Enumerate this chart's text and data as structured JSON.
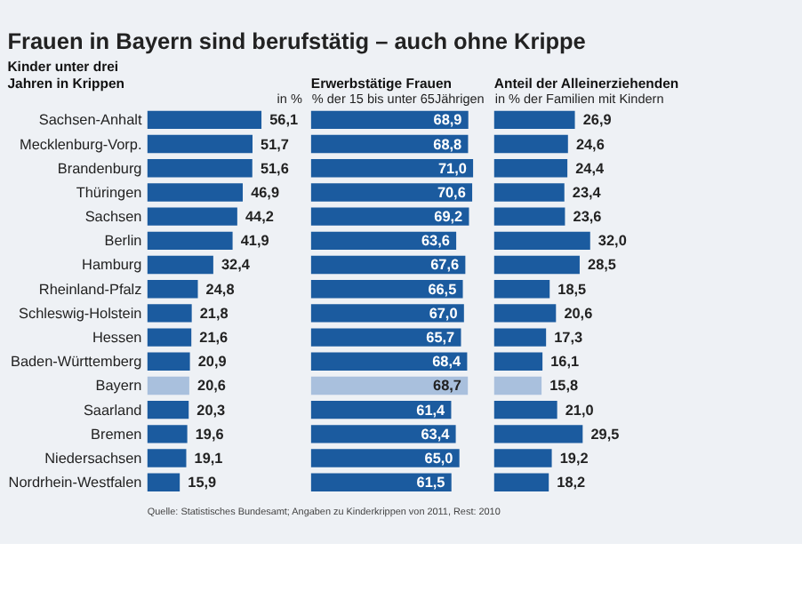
{
  "chart_data": [
    {
      "type": "bar",
      "orientation": "horizontal",
      "title": "Frauen in Bayern sind berufstätig – auch ohne Krippe",
      "subtitle": "Kinder unter drei\nJahren in Krippen",
      "xlabel": "in %",
      "categories": [
        "Sachsen-Anhalt",
        "Mecklenburg-Vorp.",
        "Brandenburg",
        "Thüringen",
        "Sachsen",
        "Berlin",
        "Hamburg",
        "Rheinland-Pfalz",
        "Schleswig-Holstein",
        "Hessen",
        "Baden-Württemberg",
        "Bayern",
        "Saarland",
        "Bremen",
        "Niedersachsen",
        "Nordrhein-Westfalen"
      ],
      "values": [
        56.1,
        51.7,
        51.6,
        46.9,
        44.2,
        41.9,
        32.4,
        24.8,
        21.8,
        21.6,
        20.9,
        20.6,
        20.3,
        19.6,
        19.1,
        15.9
      ],
      "value_labels": [
        "56,1",
        "51,7",
        "51,6",
        "46,9",
        "44,2",
        "41,9",
        "32,4",
        "24,8",
        "21,8",
        "21,6",
        "20,9",
        "20,6",
        "20,3",
        "19,6",
        "19,1",
        "15,9"
      ],
      "colors": [
        "#1b5b9f",
        "#1b5b9f",
        "#1b5b9f",
        "#1b5b9f",
        "#1b5b9f",
        "#1b5b9f",
        "#1b5b9f",
        "#1b5b9f",
        "#1b5b9f",
        "#1b5b9f",
        "#1b5b9f",
        "#a9c0dd",
        "#1b5b9f",
        "#1b5b9f",
        "#1b5b9f",
        "#1b5b9f"
      ],
      "tick_labels": "y",
      "annotations": [
        "Quelle: Statistisches Bundesamt; Angaben zu Kinderkrippen von 2011, Rest: 2010"
      ]
    },
    {
      "type": "bar",
      "orientation": "horizontal",
      "subtitle": "Erwerbstätige Frauen",
      "xlabel": "% der 15 bis unter 65Jährigen",
      "categories": [
        null,
        null,
        null,
        null,
        null,
        null,
        null,
        null,
        null,
        null,
        null,
        null,
        null,
        null,
        null,
        null
      ],
      "values": [
        68.9,
        68.8,
        71.0,
        70.6,
        69.2,
        63.6,
        67.6,
        66.5,
        67.0,
        65.7,
        68.4,
        68.7,
        61.4,
        63.4,
        65.0,
        61.5
      ],
      "value_labels": [
        "68,9",
        "68,8",
        "71,0",
        "70,6",
        "69,2",
        "63,6",
        "67,6",
        "66,5",
        "67,0",
        "65,7",
        "68,4",
        "68,7",
        "61,4",
        "63,4",
        "65,0",
        "61,5"
      ],
      "colors": [
        "#1b5b9f",
        "#1b5b9f",
        "#1b5b9f",
        "#1b5b9f",
        "#1b5b9f",
        "#1b5b9f",
        "#1b5b9f",
        "#1b5b9f",
        "#1b5b9f",
        "#1b5b9f",
        "#1b5b9f",
        "#a9c0dd",
        "#1b5b9f",
        "#1b5b9f",
        "#1b5b9f",
        "#1b5b9f"
      ],
      "tick_labels": false
    },
    {
      "type": "bar",
      "orientation": "horizontal",
      "subtitle": "Anteil der Alleinerziehenden",
      "xlabel": "in % der Familien mit Kindern",
      "categories": [
        null,
        null,
        null,
        null,
        null,
        null,
        null,
        null,
        null,
        null,
        null,
        null,
        null,
        null,
        null,
        null
      ],
      "values": [
        26.9,
        24.6,
        24.4,
        23.4,
        23.6,
        32.0,
        28.5,
        18.5,
        20.6,
        17.3,
        16.1,
        15.8,
        21.0,
        29.5,
        19.2,
        18.2
      ],
      "value_labels": [
        "26,9",
        "24,6",
        "24,4",
        "23,4",
        "23,6",
        "32,0",
        "28,5",
        "18,5",
        "20,6",
        "17,3",
        "16,1",
        "15,8",
        "21,0",
        "29,5",
        "19,2",
        "18,2"
      ],
      "colors": [
        "#1b5b9f",
        "#1b5b9f",
        "#1b5b9f",
        "#1b5b9f",
        "#1b5b9f",
        "#1b5b9f",
        "#1b5b9f",
        "#1b5b9f",
        "#1b5b9f",
        "#1b5b9f",
        "#1b5b9f",
        "#a9c0dd",
        "#1b5b9f",
        "#1b5b9f",
        "#1b5b9f",
        "#1b5b9f"
      ],
      "tick_labels": false
    }
  ]
}
